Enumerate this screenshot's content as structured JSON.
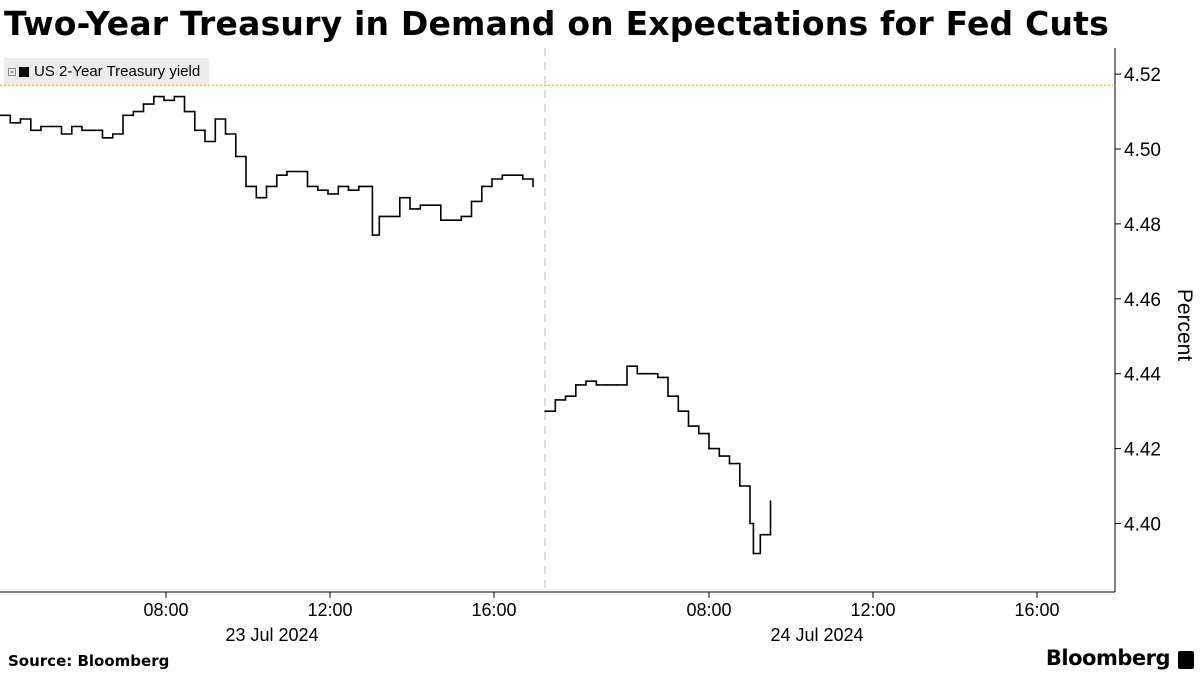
{
  "title": "Two-Year Treasury in Demand on Expectations for Fed Cuts",
  "legend": {
    "series_name": "US 2-Year Treasury yield"
  },
  "footer": {
    "source": "Source: Bloomberg",
    "brand": "Bloomberg"
  },
  "colors": {
    "line": "#000000",
    "reference": "#f5a800",
    "axis": "#000000",
    "grid_divider": "#bbbbbb",
    "legend_bg": "#ececec"
  },
  "chart_data": {
    "type": "line",
    "title": "Two-Year Treasury in Demand on Expectations for Fed Cuts",
    "ylabel": "Percent",
    "ylim": [
      4.385,
      4.525
    ],
    "y_ticks": [
      "4.40",
      "4.42",
      "4.44",
      "4.46",
      "4.48",
      "4.50",
      "4.52"
    ],
    "x_tick_labels": [
      "08:00",
      "12:00",
      "16:00",
      "08:00",
      "12:00",
      "16:00"
    ],
    "x_date_labels": [
      "23 Jul 2024",
      "24 Jul 2024"
    ],
    "reference_line": {
      "value": 4.517
    },
    "series": [
      {
        "name": "US 2-Year Treasury yield",
        "segments": [
          {
            "date": "2024-07-23",
            "times": [
              "04:00",
              "04:15",
              "04:30",
              "04:45",
              "05:00",
              "05:15",
              "05:30",
              "05:45",
              "06:00",
              "06:15",
              "06:30",
              "06:45",
              "07:00",
              "07:15",
              "07:30",
              "07:45",
              "08:00",
              "08:15",
              "08:30",
              "08:45",
              "09:00",
              "09:15",
              "09:30",
              "09:45",
              "10:00",
              "10:15",
              "10:30",
              "10:45",
              "11:00",
              "11:15",
              "11:30",
              "11:45",
              "12:00",
              "12:15",
              "12:30",
              "12:45",
              "13:00",
              "13:05",
              "13:15",
              "13:30",
              "13:45",
              "14:00",
              "14:15",
              "14:30",
              "14:45",
              "15:00",
              "15:15",
              "15:30",
              "15:45",
              "16:00",
              "16:15",
              "16:30",
              "16:45",
              "17:00"
            ],
            "values": [
              4.509,
              4.507,
              4.508,
              4.505,
              4.506,
              4.506,
              4.504,
              4.506,
              4.505,
              4.505,
              4.503,
              4.504,
              4.509,
              4.51,
              4.512,
              4.514,
              4.513,
              4.514,
              4.51,
              4.505,
              4.502,
              4.508,
              4.504,
              4.498,
              4.49,
              4.487,
              4.49,
              4.493,
              4.494,
              4.494,
              4.49,
              4.489,
              4.488,
              4.49,
              4.489,
              4.49,
              4.49,
              4.477,
              4.482,
              4.482,
              4.487,
              4.484,
              4.485,
              4.485,
              4.481,
              4.481,
              4.482,
              4.486,
              4.49,
              4.492,
              4.493,
              4.493,
              4.492,
              4.49
            ]
          },
          {
            "date": "2024-07-24",
            "times": [
              "04:00",
              "04:15",
              "04:30",
              "04:45",
              "05:00",
              "05:15",
              "05:30",
              "05:45",
              "06:00",
              "06:15",
              "06:30",
              "06:45",
              "07:00",
              "07:15",
              "07:30",
              "07:45",
              "08:00",
              "08:15",
              "08:30",
              "08:45",
              "09:00",
              "09:05",
              "09:15",
              "09:30"
            ],
            "values": [
              4.43,
              4.433,
              4.434,
              4.437,
              4.438,
              4.437,
              4.437,
              4.437,
              4.442,
              4.44,
              4.44,
              4.439,
              4.434,
              4.43,
              4.426,
              4.424,
              4.42,
              4.418,
              4.416,
              4.41,
              4.4,
              4.392,
              4.397,
              4.406
            ]
          }
        ]
      }
    ]
  }
}
